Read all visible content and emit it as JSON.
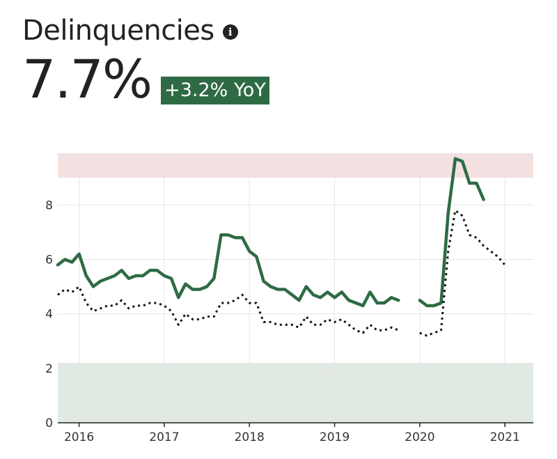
{
  "header": {
    "title": "Delinquencies",
    "info_icon": "info-icon",
    "value": "7.7%",
    "yoy_badge": "+3.2% YoY"
  },
  "colors": {
    "primary_line": "#2e6b45",
    "comparison_line": "#111111",
    "badge_bg": "#2e6b45",
    "danger_band": "#f3e0e0",
    "safe_band": "#e1e9e3",
    "grid": "#e6e6e6"
  },
  "chart_data": {
    "type": "line",
    "title": "",
    "xlabel": "",
    "ylabel": "",
    "x_ticks": [
      "2016",
      "2017",
      "2018",
      "2019",
      "2020",
      "2021"
    ],
    "y_ticks": [
      "0",
      "2",
      "4",
      "6",
      "8"
    ],
    "xlim": [
      "2015-10",
      "2021-05"
    ],
    "ylim": [
      0,
      9.9
    ],
    "grid": true,
    "legend": "none",
    "bands": [
      {
        "name": "high",
        "from": 9.0,
        "to": 9.9
      },
      {
        "name": "low",
        "from": 0,
        "to": 2.2
      }
    ],
    "series": [
      {
        "style": "solid",
        "segments": [
          {
            "x": [
              "2015-10",
              "2015-11",
              "2015-12",
              "2016-01",
              "2016-02",
              "2016-03",
              "2016-04",
              "2016-05",
              "2016-06",
              "2016-07",
              "2016-08",
              "2016-09",
              "2016-10",
              "2016-11",
              "2016-12",
              "2017-01",
              "2017-02",
              "2017-03",
              "2017-04",
              "2017-05",
              "2017-06",
              "2017-07",
              "2017-08",
              "2017-09",
              "2017-10",
              "2017-11",
              "2017-12",
              "2018-01",
              "2018-02",
              "2018-03",
              "2018-04",
              "2018-05",
              "2018-06",
              "2018-07",
              "2018-08",
              "2018-09",
              "2018-10",
              "2018-11",
              "2018-12",
              "2019-01",
              "2019-02",
              "2019-03",
              "2019-04",
              "2019-05",
              "2019-06",
              "2019-07",
              "2019-08",
              "2019-09",
              "2019-10"
            ],
            "y": [
              5.8,
              6.0,
              5.9,
              6.2,
              5.4,
              5.0,
              5.2,
              5.3,
              5.4,
              5.6,
              5.3,
              5.4,
              5.4,
              5.6,
              5.6,
              5.4,
              5.3,
              4.6,
              5.1,
              4.9,
              4.9,
              5.0,
              5.3,
              6.9,
              6.9,
              6.8,
              6.8,
              6.3,
              6.1,
              5.2,
              5.0,
              4.9,
              4.9,
              4.7,
              4.5,
              5.0,
              4.7,
              4.6,
              4.8,
              4.6,
              4.8,
              4.5,
              4.4,
              4.3,
              4.8,
              4.4,
              4.4,
              4.6,
              4.5
            ]
          },
          {
            "x": [
              "2020-01",
              "2020-02",
              "2020-03",
              "2020-04",
              "2020-05",
              "2020-06",
              "2020-07",
              "2020-08",
              "2020-09",
              "2020-10"
            ],
            "y": [
              4.5,
              4.3,
              4.3,
              4.4,
              7.7,
              9.7,
              9.6,
              8.8,
              8.8,
              8.2
            ]
          }
        ]
      },
      {
        "style": "dotted",
        "segments": [
          {
            "x": [
              "2015-10",
              "2015-11",
              "2015-12",
              "2016-01",
              "2016-02",
              "2016-03",
              "2016-04",
              "2016-05",
              "2016-06",
              "2016-07",
              "2016-08",
              "2016-09",
              "2016-10",
              "2016-11",
              "2016-12",
              "2017-01",
              "2017-02",
              "2017-03",
              "2017-04",
              "2017-05",
              "2017-06",
              "2017-07",
              "2017-08",
              "2017-09",
              "2017-10",
              "2017-11",
              "2017-12",
              "2018-01",
              "2018-02",
              "2018-03",
              "2018-04",
              "2018-05",
              "2018-06",
              "2018-07",
              "2018-08",
              "2018-09",
              "2018-10",
              "2018-11",
              "2018-12",
              "2019-01",
              "2019-02",
              "2019-03",
              "2019-04",
              "2019-05",
              "2019-06",
              "2019-07",
              "2019-08",
              "2019-09",
              "2019-10"
            ],
            "y": [
              4.7,
              4.9,
              4.8,
              5.0,
              4.4,
              4.1,
              4.2,
              4.3,
              4.3,
              4.5,
              4.2,
              4.3,
              4.3,
              4.4,
              4.4,
              4.3,
              4.1,
              3.6,
              4.0,
              3.8,
              3.8,
              3.9,
              3.9,
              4.4,
              4.4,
              4.5,
              4.7,
              4.4,
              4.4,
              3.7,
              3.7,
              3.6,
              3.6,
              3.6,
              3.5,
              3.9,
              3.6,
              3.6,
              3.8,
              3.7,
              3.8,
              3.6,
              3.4,
              3.3,
              3.6,
              3.4,
              3.4,
              3.5,
              3.4
            ]
          },
          {
            "x": [
              "2020-01",
              "2020-02",
              "2020-03",
              "2020-04",
              "2020-05",
              "2020-06",
              "2020-07",
              "2020-08",
              "2020-09",
              "2020-10",
              "2020-11",
              "2020-12",
              "2021-01"
            ],
            "y": [
              3.3,
              3.2,
              3.3,
              3.4,
              6.3,
              7.8,
              7.6,
              6.9,
              6.8,
              6.5,
              6.3,
              6.1,
              5.8
            ]
          }
        ]
      }
    ]
  }
}
